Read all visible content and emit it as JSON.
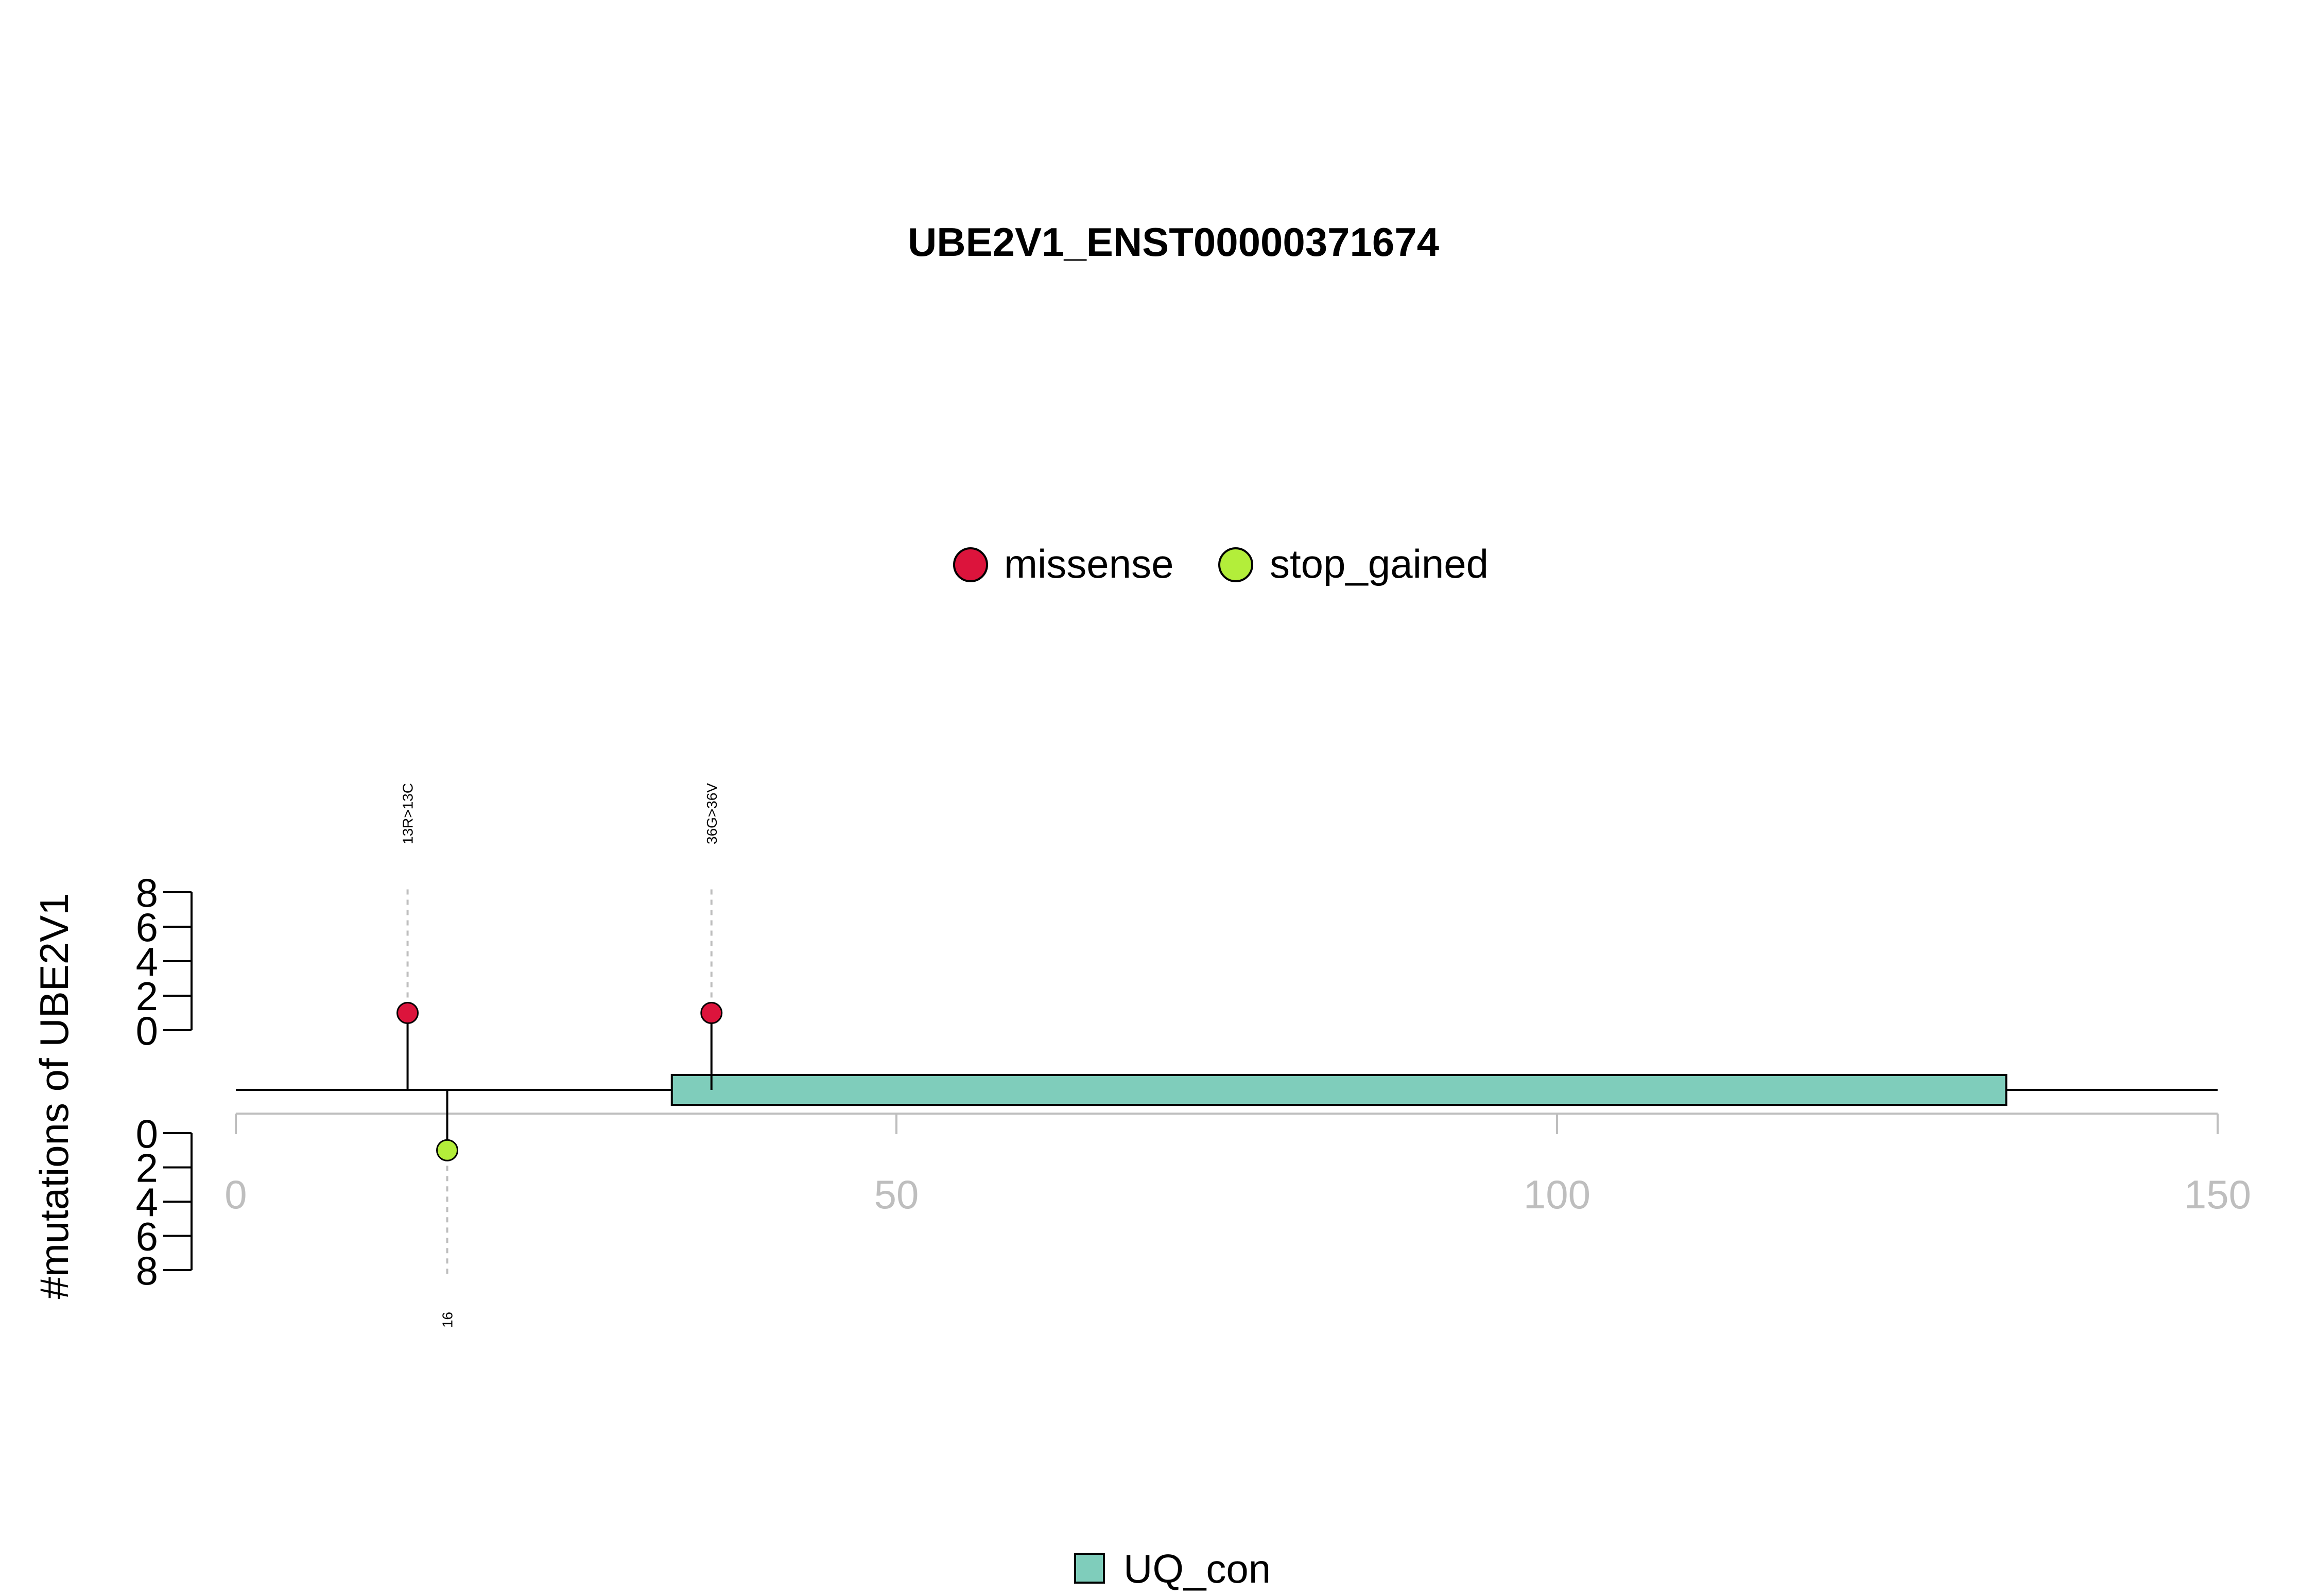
{
  "chart_data": {
    "type": "lollipop",
    "title": "UBE2V1_ENST00000371674",
    "ylabel": "#mutations of UBE2V1",
    "xlim": [
      0,
      150
    ],
    "x_ticks": [
      "0",
      "50",
      "100",
      "150"
    ],
    "y_ticks_top": [
      "0",
      "2",
      "4",
      "6",
      "8"
    ],
    "y_ticks_bottom": [
      "0",
      "2",
      "4",
      "6",
      "8"
    ],
    "ylim": [
      0,
      8
    ],
    "mutation_legend": [
      {
        "label": "missense",
        "color": "#dc143c"
      },
      {
        "label": "stop_gained",
        "color": "#b3ee3a"
      }
    ],
    "domain_legend": [
      {
        "label": "UQ_con",
        "color": "#7fcdbb"
      }
    ],
    "domains": [
      {
        "name": "UQ_con",
        "start": 33,
        "end": 134
      }
    ],
    "protein_length": 150,
    "mutations": [
      {
        "pos": 13,
        "count": 1,
        "type": "missense",
        "side": "top",
        "label": "13R>13C"
      },
      {
        "pos": 36,
        "count": 1,
        "type": "missense",
        "side": "top",
        "label": "36G>36V"
      },
      {
        "pos": 16,
        "count": 1,
        "type": "stop_gained",
        "side": "bottom",
        "label": "16"
      }
    ]
  }
}
